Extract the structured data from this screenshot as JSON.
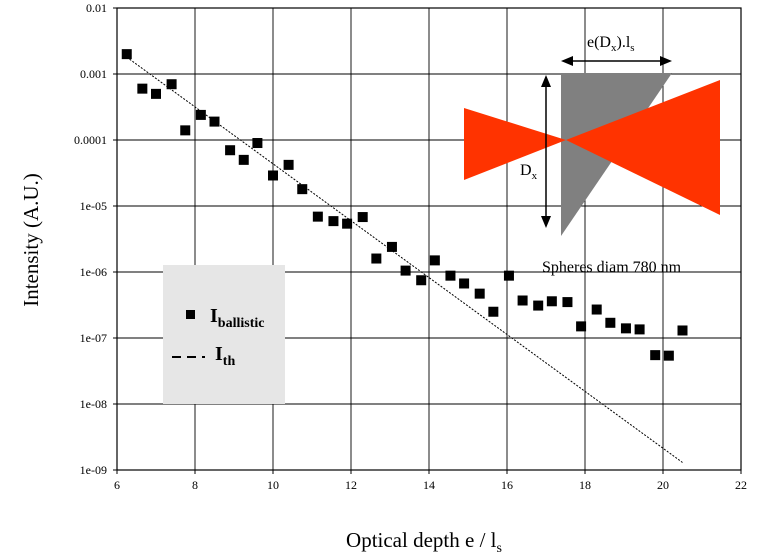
{
  "chart_data": {
    "type": "scatter",
    "title": "",
    "xlabel": {
      "main": "Optical depth e / l",
      "sub": "s"
    },
    "ylabel": "Intensity (A.U.)",
    "xlim": [
      6,
      22
    ],
    "ylim": [
      1e-09,
      0.01
    ],
    "y_scale": "log",
    "grid": true,
    "x_ticks": [
      "6",
      "8",
      "10",
      "12",
      "14",
      "16",
      "18",
      "20",
      "22"
    ],
    "y_ticks": [
      "1e-09",
      "1e-08",
      "1e-07",
      "1e-06",
      "1e-05",
      "0.0001",
      "0.001",
      "0.01"
    ],
    "legend": {
      "placement": "left-middle",
      "entries": [
        {
          "main": "I",
          "sub": "ballistic",
          "marker": "square"
        },
        {
          "main": "I",
          "sub": "th",
          "marker": "dashed-line"
        }
      ]
    },
    "series": [
      {
        "name": "I ballistic",
        "marker": "square",
        "color": "#000000",
        "x": [
          6.25,
          6.65,
          7.0,
          7.4,
          7.75,
          8.15,
          8.5,
          8.9,
          9.25,
          9.6,
          10.0,
          10.4,
          10.75,
          11.15,
          11.55,
          11.9,
          12.3,
          12.65,
          13.05,
          13.4,
          13.8,
          14.15,
          14.55,
          14.9,
          15.3,
          15.65,
          16.05,
          16.4,
          16.8,
          17.15,
          17.55,
          17.9,
          18.3,
          18.65,
          19.05,
          19.4,
          19.8,
          20.15,
          20.5
        ],
        "y": [
          0.002,
          0.0006,
          0.0005,
          0.0007,
          0.00014,
          0.00024,
          0.00019,
          7e-05,
          5e-05,
          9e-05,
          2.9e-05,
          4.2e-05,
          1.8e-05,
          6.9e-06,
          5.9e-06,
          5.4e-06,
          6.8e-06,
          1.6e-06,
          2.4e-06,
          1.05e-06,
          7.5e-07,
          1.5e-06,
          8.8e-07,
          6.7e-07,
          4.7e-07,
          2.5e-07,
          8.8e-07,
          3.7e-07,
          3.1e-07,
          3.6e-07,
          3.5e-07,
          1.5e-07,
          2.7e-07,
          1.7e-07,
          1.4e-07,
          1.35e-07,
          5.5e-08,
          5.4e-08,
          1.3e-07
        ]
      },
      {
        "name": "I th",
        "style": "dashed",
        "color": "#000000",
        "x": [
          6.25,
          20.5
        ],
        "y": [
          0.0018,
          1.3e-09
        ]
      }
    ],
    "annotations": {
      "width_label": {
        "main": "e(D",
        "sub": "x",
        "rest": ").l",
        "sub2": "s"
      },
      "height_label": {
        "main": "D",
        "sub": "x"
      },
      "spheres_label": "Spheres diam 780 nm"
    },
    "colors": {
      "beam": "#ff3300",
      "prism": "#808080",
      "legend_box": "#e6e6e6"
    }
  }
}
